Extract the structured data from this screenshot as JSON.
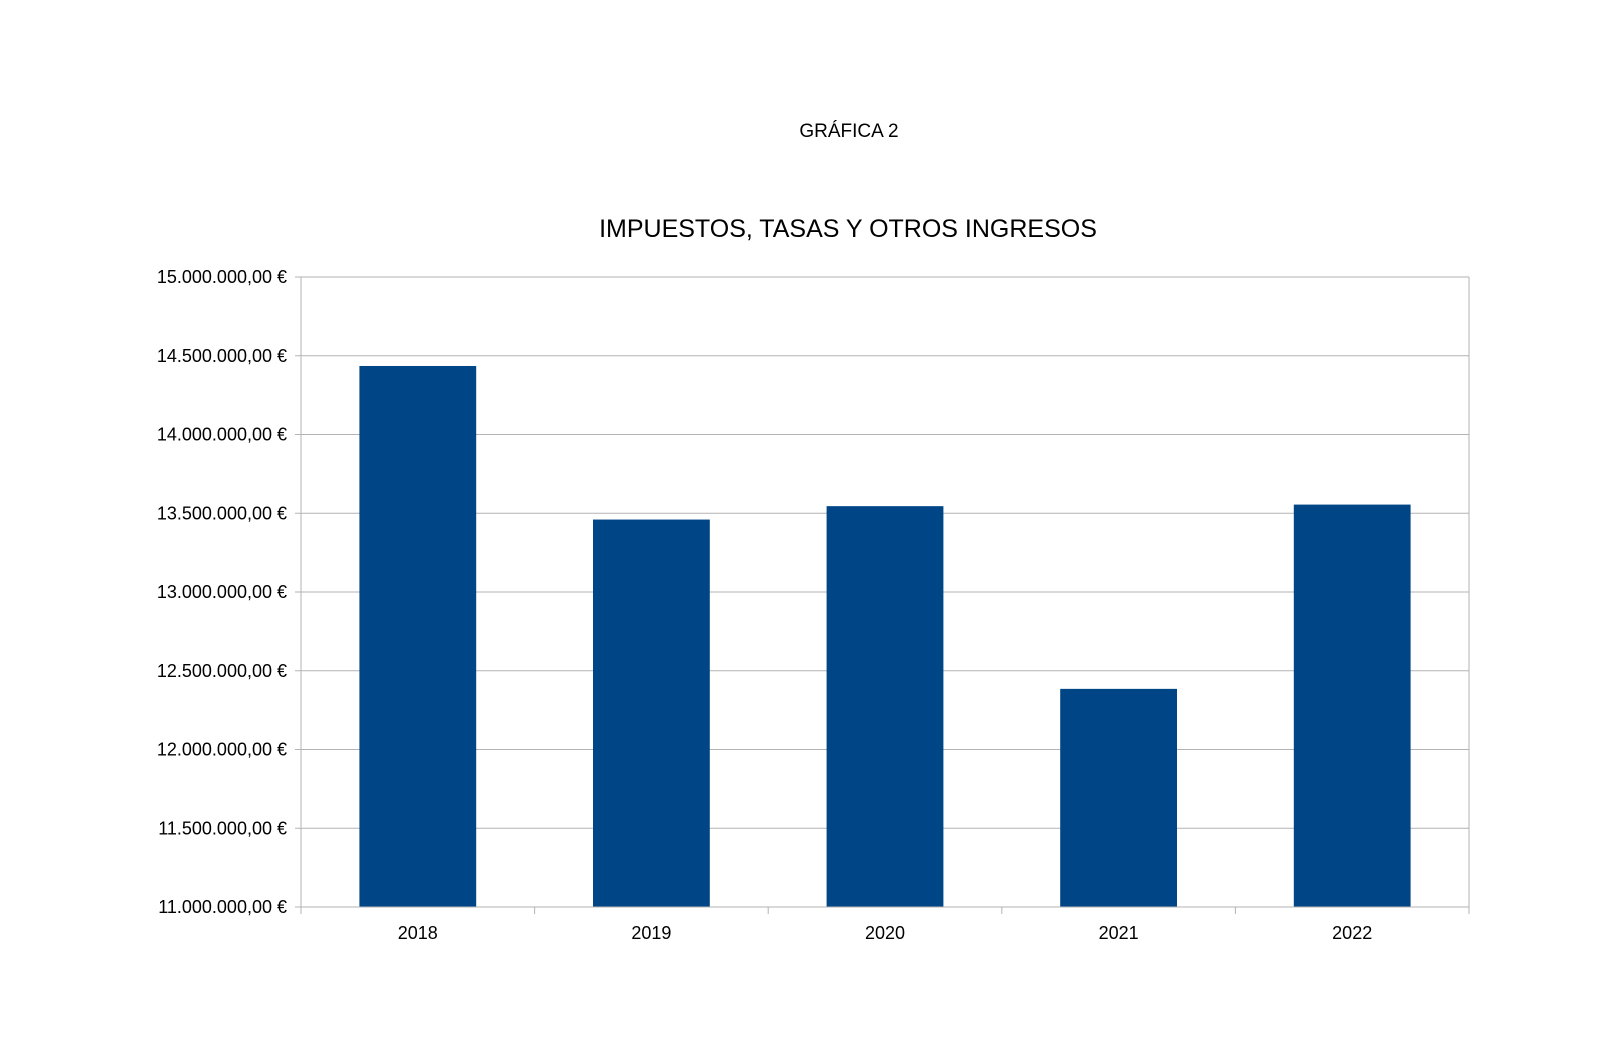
{
  "page_label": "GRÁFICA 2",
  "chart_data": {
    "type": "bar",
    "title": "IMPUESTOS, TASAS Y OTROS INGRESOS",
    "categories": [
      "2018",
      "2019",
      "2020",
      "2021",
      "2022"
    ],
    "values": [
      14435000,
      13460000,
      13545000,
      12385000,
      13555000
    ],
    "ylim": [
      11000000,
      15000000
    ],
    "yticks": [
      11000000,
      11500000,
      12000000,
      12500000,
      13000000,
      13500000,
      14000000,
      14500000,
      15000000
    ],
    "ytick_labels": [
      "11.000.000,00 €",
      "11.500.000,00 €",
      "12.000.000,00 €",
      "12.500.000,00 €",
      "13.000.000,00 €",
      "13.500.000,00 €",
      "14.000.000,00 €",
      "14.500.000,00 €",
      "15.000.000,00 €"
    ],
    "xlabel": "",
    "ylabel": "",
    "grid": true,
    "legend": "none",
    "colors": {
      "bar": "#004586",
      "grid": "#b3b3b3",
      "axis": "#b3b3b3"
    }
  }
}
